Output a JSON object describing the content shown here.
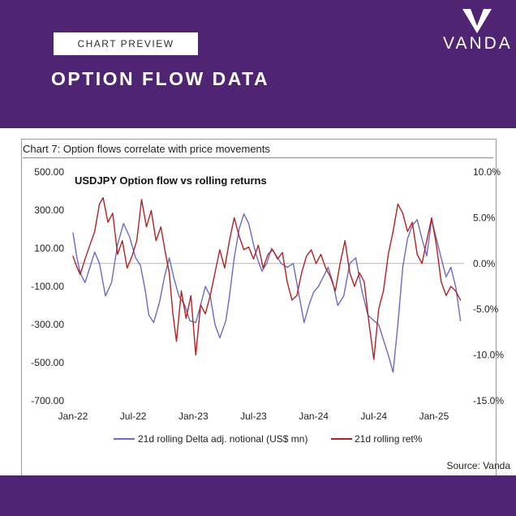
{
  "header": {
    "tag": "CHART PREVIEW",
    "title": "OPTION FLOW DATA",
    "logo_text": "VANDA",
    "logo_icon": "vanda-v-logo-icon"
  },
  "colors": {
    "brand_purple": "#4f2573",
    "flow_series": "#6a6ac8",
    "ret_series": "#b22222",
    "zero_line": "#b9b9b9"
  },
  "chart_heading": "Chart 7: Option flows correlate with price movements",
  "source": "Source: Vanda",
  "chart_data": {
    "type": "line",
    "title": "USDJPY Option flow vs rolling returns",
    "x_tick_labels": [
      "Jan-22",
      "Jul-22",
      "Jan-23",
      "Jul-23",
      "Jan-24",
      "Jul-24",
      "Jan-25"
    ],
    "y_left": {
      "ticks": [
        500,
        300,
        100,
        -100,
        -300,
        -500,
        -700
      ],
      "tick_labels": [
        "500.00",
        "300.00",
        "100.00",
        "-100.00",
        "-300.00",
        "-500.00",
        "-700.00"
      ],
      "ylim": [
        -700,
        500
      ]
    },
    "y_right": {
      "ticks": [
        10,
        5,
        0,
        -5,
        -10,
        -15
      ],
      "tick_labels": [
        "10.0%",
        "5.0%",
        "0.0%",
        "-5.0%",
        "-10.0%",
        "-15.0%"
      ],
      "ylim": [
        -15,
        10
      ]
    },
    "grid": false,
    "legend_position": "bottom",
    "series": [
      {
        "name": "21d rolling Delta adj. notional (US$ mn)",
        "axis": "left",
        "color": "#6a6ac8",
        "x": [
          2022.0,
          2022.03,
          2022.06,
          2022.1,
          2022.14,
          2022.18,
          2022.22,
          2022.27,
          2022.32,
          2022.37,
          2022.42,
          2022.47,
          2022.52,
          2022.56,
          2022.6,
          2022.63,
          2022.67,
          2022.72,
          2022.76,
          2022.8,
          2022.84,
          2022.88,
          2022.93,
          2022.97,
          2023.02,
          2023.06,
          2023.1,
          2023.14,
          2023.18,
          2023.22,
          2023.27,
          2023.3,
          2023.34,
          2023.38,
          2023.42,
          2023.46,
          2023.5,
          2023.53,
          2023.57,
          2023.61,
          2023.65,
          2023.69,
          2023.73,
          2023.78,
          2023.83,
          2023.88,
          2023.92,
          2023.96,
          2024.0,
          2024.04,
          2024.08,
          2024.12,
          2024.16,
          2024.2,
          2024.25,
          2024.3,
          2024.35,
          2024.4,
          2024.45,
          2024.5,
          2024.54,
          2024.58,
          2024.62,
          2024.66,
          2024.7,
          2024.74,
          2024.78,
          2024.82,
          2024.86,
          2024.9,
          2024.94,
          2024.98,
          2025.02,
          2025.06,
          2025.1,
          2025.14,
          2025.18,
          2025.22
        ],
        "y": [
          180,
          60,
          -30,
          -80,
          0,
          80,
          20,
          -150,
          -80,
          120,
          230,
          160,
          50,
          10,
          -120,
          -250,
          -290,
          -180,
          -50,
          50,
          -60,
          -150,
          -200,
          -280,
          -290,
          -200,
          -100,
          -150,
          -300,
          -370,
          -280,
          -150,
          50,
          200,
          280,
          230,
          120,
          50,
          -20,
          20,
          100,
          60,
          20,
          0,
          20,
          -150,
          -290,
          -200,
          -130,
          -100,
          -50,
          0,
          -80,
          -200,
          -150,
          20,
          50,
          -120,
          -250,
          -280,
          -300,
          -380,
          -460,
          -550,
          -300,
          0,
          150,
          220,
          250,
          150,
          60,
          250,
          150,
          50,
          -50,
          0,
          -100,
          -280
        ]
      },
      {
        "name": "21d rolling ret%",
        "axis": "right",
        "color": "#b22222",
        "x": [
          2022.0,
          2022.03,
          2022.06,
          2022.1,
          2022.14,
          2022.18,
          2022.22,
          2022.25,
          2022.29,
          2022.33,
          2022.37,
          2022.41,
          2022.45,
          2022.49,
          2022.53,
          2022.57,
          2022.61,
          2022.65,
          2022.69,
          2022.73,
          2022.77,
          2022.8,
          2022.83,
          2022.86,
          2022.9,
          2022.94,
          2022.98,
          2023.02,
          2023.06,
          2023.1,
          2023.14,
          2023.18,
          2023.22,
          2023.26,
          2023.3,
          2023.34,
          2023.38,
          2023.42,
          2023.46,
          2023.5,
          2023.54,
          2023.58,
          2023.62,
          2023.66,
          2023.7,
          2023.74,
          2023.78,
          2023.82,
          2023.86,
          2023.9,
          2023.94,
          2023.98,
          2024.02,
          2024.06,
          2024.1,
          2024.14,
          2024.18,
          2024.22,
          2024.26,
          2024.3,
          2024.34,
          2024.38,
          2024.42,
          2024.46,
          2024.5,
          2024.54,
          2024.58,
          2024.62,
          2024.66,
          2024.7,
          2024.74,
          2024.78,
          2024.82,
          2024.86,
          2024.9,
          2024.94,
          2024.98,
          2025.02,
          2025.06,
          2025.1,
          2025.14,
          2025.18,
          2025.22
        ],
        "y": [
          0.8,
          -0.3,
          -1.2,
          0.5,
          2.0,
          3.5,
          6.5,
          7.2,
          4.5,
          5.5,
          1.0,
          2.5,
          -0.5,
          0.8,
          2.5,
          7.0,
          4.0,
          5.8,
          2.5,
          4.0,
          1.0,
          -1.0,
          -5.5,
          -8.5,
          -3.0,
          -6.0,
          -3.5,
          -10.0,
          -4.5,
          -5.5,
          -3.5,
          -1.0,
          1.5,
          -0.5,
          2.5,
          5.0,
          3.0,
          1.5,
          1.8,
          0.5,
          2.0,
          -0.5,
          1.0,
          1.5,
          0.5,
          1.2,
          -2.0,
          -4.0,
          -3.5,
          -1.0,
          0.8,
          1.5,
          0.0,
          1.0,
          -0.5,
          -1.5,
          -3.0,
          0.0,
          2.5,
          -1.0,
          -2.5,
          -1.0,
          -2.0,
          -6.5,
          -10.5,
          -5.0,
          -3.0,
          1.0,
          3.5,
          6.5,
          5.5,
          3.5,
          4.5,
          1.0,
          0.0,
          2.5,
          5.0,
          2.0,
          -2.0,
          -3.5,
          -2.5,
          -3.0,
          -4.0
        ]
      }
    ]
  }
}
